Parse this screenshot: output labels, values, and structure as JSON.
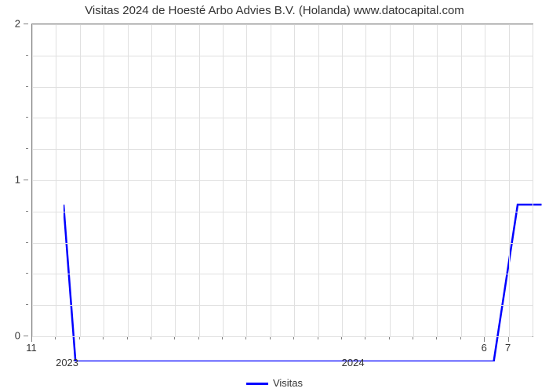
{
  "chart": {
    "type": "line",
    "title": "Visitas 2024 de Hoesté Arbo Advies B.V. (Holanda) www.datocapital.com",
    "title_fontsize": 15,
    "title_color": "#333333",
    "background_color": "#ffffff",
    "plot_border_color": "#808080",
    "grid_color": "#e0e0e0",
    "font_family": "Arial, sans-serif",
    "y_axis": {
      "ylim": [
        0,
        2
      ],
      "major_ticks": [
        0,
        1,
        2
      ],
      "minor_tick_count_between": 4,
      "label_fontsize": 13,
      "label_color": "#333333"
    },
    "x_axis": {
      "total_months": 21,
      "start_month_label": "11",
      "end_labels": [
        "6",
        "7"
      ],
      "end_label_positions": [
        19,
        20
      ],
      "year_labels": [
        {
          "label": "2023",
          "month_index": 1.5
        },
        {
          "label": "2024",
          "month_index": 13.5
        }
      ],
      "major_tick_positions": [
        0,
        19,
        20
      ],
      "minor_tick_positions": [
        1,
        2,
        3,
        4,
        5,
        6,
        7,
        8,
        9,
        10,
        11,
        12,
        13,
        14,
        15,
        16,
        17,
        18
      ],
      "vertical_grid_count": 21,
      "label_fontsize": 13,
      "label_color": "#333333"
    },
    "series": [
      {
        "name": "Visitas",
        "color": "#0000ff",
        "line_width": 2.5,
        "data": [
          {
            "x": 0,
            "y": 1
          },
          {
            "x": 0.5,
            "y": 0
          },
          {
            "x": 18,
            "y": 0
          },
          {
            "x": 19,
            "y": 1
          },
          {
            "x": 20,
            "y": 1
          }
        ]
      }
    ],
    "legend": {
      "label": "Visitas",
      "swatch_color": "#0000ff",
      "fontsize": 13
    }
  }
}
